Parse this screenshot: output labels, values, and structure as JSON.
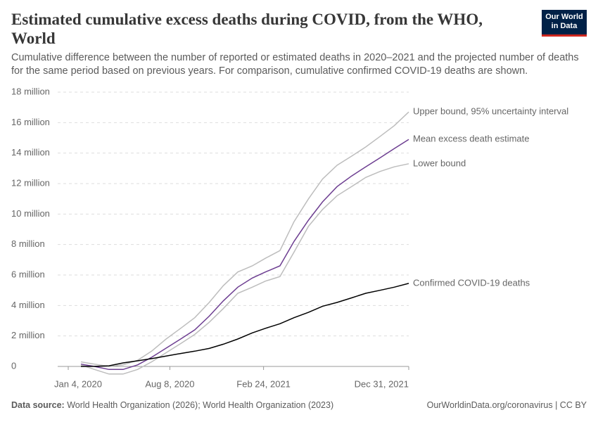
{
  "header": {
    "title": "Estimated cumulative excess deaths during COVID, from the WHO, World",
    "subtitle": "Cumulative difference between the number of reported or estimated deaths in 2020–2021 and the projected number of deaths for the same period based on previous years. For comparison, cumulative confirmed COVID-19 deaths are shown.",
    "logo": [
      "Our World",
      "in Data"
    ]
  },
  "footer": {
    "source_label": "Data source:",
    "source": "World Health Organization (2026); World Health Organization (2023)",
    "url": "OurWorldinData.org/coronavirus | CC BY"
  },
  "chart_data": {
    "type": "line",
    "x": [
      "2020-01-31",
      "2020-02-29",
      "2020-03-31",
      "2020-04-30",
      "2020-05-31",
      "2020-06-30",
      "2020-07-31",
      "2020-08-31",
      "2020-09-30",
      "2020-10-31",
      "2020-11-30",
      "2020-12-31",
      "2021-01-31",
      "2021-02-28",
      "2021-03-31",
      "2021-04-30",
      "2021-05-31",
      "2021-06-30",
      "2021-07-31",
      "2021-08-31",
      "2021-09-30",
      "2021-10-31",
      "2021-11-30",
      "2021-12-31"
    ],
    "xlim": [
      "2020-01-04",
      "2021-12-31"
    ],
    "xticks": [
      {
        "value": "2020-01-04",
        "label": "Jan 4, 2020"
      },
      {
        "value": "2020-08-08",
        "label": "Aug 8, 2020"
      },
      {
        "value": "2021-02-24",
        "label": "Feb 24, 2021"
      },
      {
        "value": "2021-12-31",
        "label": "Dec 31, 2021"
      }
    ],
    "ylim": [
      0,
      18000000
    ],
    "yticks": [
      0,
      {
        "value": 2000000,
        "label": "2 million"
      },
      {
        "value": 4000000,
        "label": "4 million"
      },
      {
        "value": 6000000,
        "label": "6 million"
      },
      {
        "value": 8000000,
        "label": "8 million"
      },
      {
        "value": 10000000,
        "label": "10 million"
      },
      {
        "value": 12000000,
        "label": "12 million"
      },
      {
        "value": 14000000,
        "label": "14 million"
      },
      {
        "value": 16000000,
        "label": "16 million"
      },
      {
        "value": 18000000,
        "label": "18 million"
      }
    ],
    "grid": true,
    "series": [
      {
        "name": "Upper bound, 95% uncertainty interval",
        "color": "#bdbdbd",
        "values": [
          300000,
          150000,
          0,
          100000,
          400000,
          1000000,
          1800000,
          2500000,
          3200000,
          4200000,
          5300000,
          6200000,
          6600000,
          7100000,
          7600000,
          9500000,
          11000000,
          12300000,
          13200000,
          13800000,
          14400000,
          15100000,
          15800000,
          16700000
        ]
      },
      {
        "name": "Mean excess death estimate",
        "color": "#6d3e91",
        "values": [
          150000,
          0,
          -200000,
          -200000,
          100000,
          600000,
          1200000,
          1800000,
          2400000,
          3300000,
          4300000,
          5200000,
          5800000,
          6200000,
          6600000,
          8200000,
          9600000,
          10800000,
          11800000,
          12500000,
          13100000,
          13700000,
          14300000,
          14900000
        ]
      },
      {
        "name": "Lower bound",
        "color": "#bdbdbd",
        "values": [
          100000,
          -200000,
          -500000,
          -500000,
          -200000,
          300000,
          900000,
          1500000,
          2100000,
          2900000,
          3800000,
          4800000,
          5200000,
          5600000,
          5900000,
          7500000,
          9200000,
          10300000,
          11200000,
          11800000,
          12400000,
          12800000,
          13100000,
          13300000
        ]
      },
      {
        "name": "Confirmed COVID-19 deaths",
        "color": "#000000",
        "values": [
          200,
          3000,
          40000,
          230000,
          370000,
          510000,
          680000,
          850000,
          1000000,
          1180000,
          1460000,
          1800000,
          2200000,
          2500000,
          2800000,
          3200000,
          3550000,
          3950000,
          4200000,
          4500000,
          4800000,
          5000000,
          5200000,
          5450000
        ]
      }
    ]
  }
}
